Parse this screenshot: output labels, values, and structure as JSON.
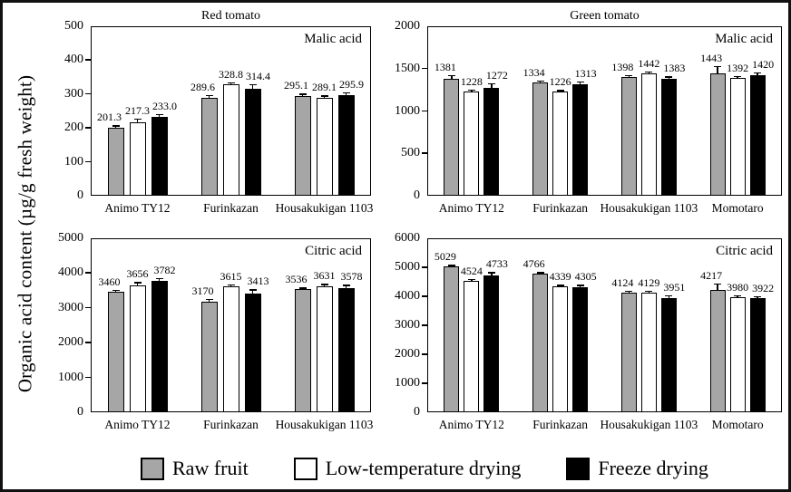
{
  "figure": {
    "y_axis_label": "Organic acid content (µg/g fresh weight)",
    "legend_position": "bottom",
    "legend": [
      {
        "label": "Raw fruit",
        "color": "#a6a6a6"
      },
      {
        "label": "Low-temperature drying",
        "color": "#ffffff"
      },
      {
        "label": "Freeze drying",
        "color": "#000000"
      }
    ]
  },
  "chart_data": [
    {
      "type": "bar",
      "position": "top-left",
      "title": "Red tomato",
      "annotation": "Malic acid",
      "ylim": [
        0,
        500
      ],
      "ytick_step": 100,
      "yticks": [
        0,
        100,
        200,
        300,
        400,
        500
      ],
      "value_decimals": 1,
      "categories": [
        "Animo TY12",
        "Furinkazan",
        "Housakukigan 1103"
      ],
      "series": [
        {
          "name": "Raw fruit",
          "values": [
            201.3,
            289.6,
            295.1
          ],
          "error_bars_approx": [
            4,
            5,
            4
          ]
        },
        {
          "name": "Low-temperature drying",
          "values": [
            217.3,
            328.8,
            289.1
          ],
          "error_bars_approx": [
            8,
            4,
            4
          ]
        },
        {
          "name": "Freeze drying",
          "values": [
            233.0,
            314.4,
            295.9
          ],
          "error_bars_approx": [
            5,
            13,
            7
          ]
        }
      ]
    },
    {
      "type": "bar",
      "position": "top-right",
      "title": "Green tomato",
      "annotation": "Malic acid",
      "ylim": [
        0,
        2000
      ],
      "ytick_step": 500,
      "yticks": [
        0,
        500,
        1000,
        1500,
        2000
      ],
      "value_decimals": 0,
      "categories": [
        "Animo TY12",
        "Furinkazan",
        "Housakukigan 1103",
        "Momotaro"
      ],
      "series": [
        {
          "name": "Raw fruit",
          "values": [
            1381,
            1334,
            1398,
            1443
          ],
          "error_bars_approx": [
            35,
            17,
            17,
            80
          ]
        },
        {
          "name": "Low-temperature drying",
          "values": [
            1228,
            1226,
            1442,
            1392
          ],
          "error_bars_approx": [
            17,
            11,
            15,
            12
          ]
        },
        {
          "name": "Freeze drying",
          "values": [
            1272,
            1313,
            1383,
            1420
          ],
          "error_bars_approx": [
            46,
            28,
            17,
            28
          ]
        }
      ]
    },
    {
      "type": "bar",
      "position": "bottom-left",
      "title": "",
      "annotation": "Citric acid",
      "ylim": [
        0,
        5000
      ],
      "ytick_step": 1000,
      "yticks": [
        0,
        1000,
        2000,
        3000,
        4000,
        5000
      ],
      "value_decimals": 0,
      "categories": [
        "Animo TY12",
        "Furinkazan",
        "Housakukigan 1103"
      ],
      "series": [
        {
          "name": "Raw fruit",
          "values": [
            3460,
            3170,
            3536
          ],
          "error_bars_approx": [
            40,
            65,
            25
          ]
        },
        {
          "name": "Low-temperature drying",
          "values": [
            3656,
            3615,
            3631
          ],
          "error_bars_approx": [
            65,
            38,
            38
          ]
        },
        {
          "name": "Freeze drying",
          "values": [
            3782,
            3413,
            3578
          ],
          "error_bars_approx": [
            50,
            90,
            65
          ]
        }
      ]
    },
    {
      "type": "bar",
      "position": "bottom-right",
      "title": "",
      "annotation": "Citric acid",
      "ylim": [
        0,
        6000
      ],
      "ytick_step": 1000,
      "yticks": [
        0,
        1000,
        2000,
        3000,
        4000,
        5000,
        6000
      ],
      "value_decimals": 0,
      "categories": [
        "Animo TY12",
        "Furinkazan",
        "Housakukigan 1103",
        "Momotaro"
      ],
      "series": [
        {
          "name": "Raw fruit",
          "values": [
            5029,
            4766,
            4124,
            4217
          ],
          "error_bars_approx": [
            30,
            34,
            34,
            200
          ]
        },
        {
          "name": "Low-temperature drying",
          "values": [
            4524,
            4339,
            4129,
            3980
          ],
          "error_bars_approx": [
            50,
            34,
            34,
            34
          ]
        },
        {
          "name": "Freeze drying",
          "values": [
            4733,
            4305,
            3951,
            3922
          ],
          "error_bars_approx": [
            68,
            68,
            50,
            50
          ]
        }
      ]
    }
  ]
}
